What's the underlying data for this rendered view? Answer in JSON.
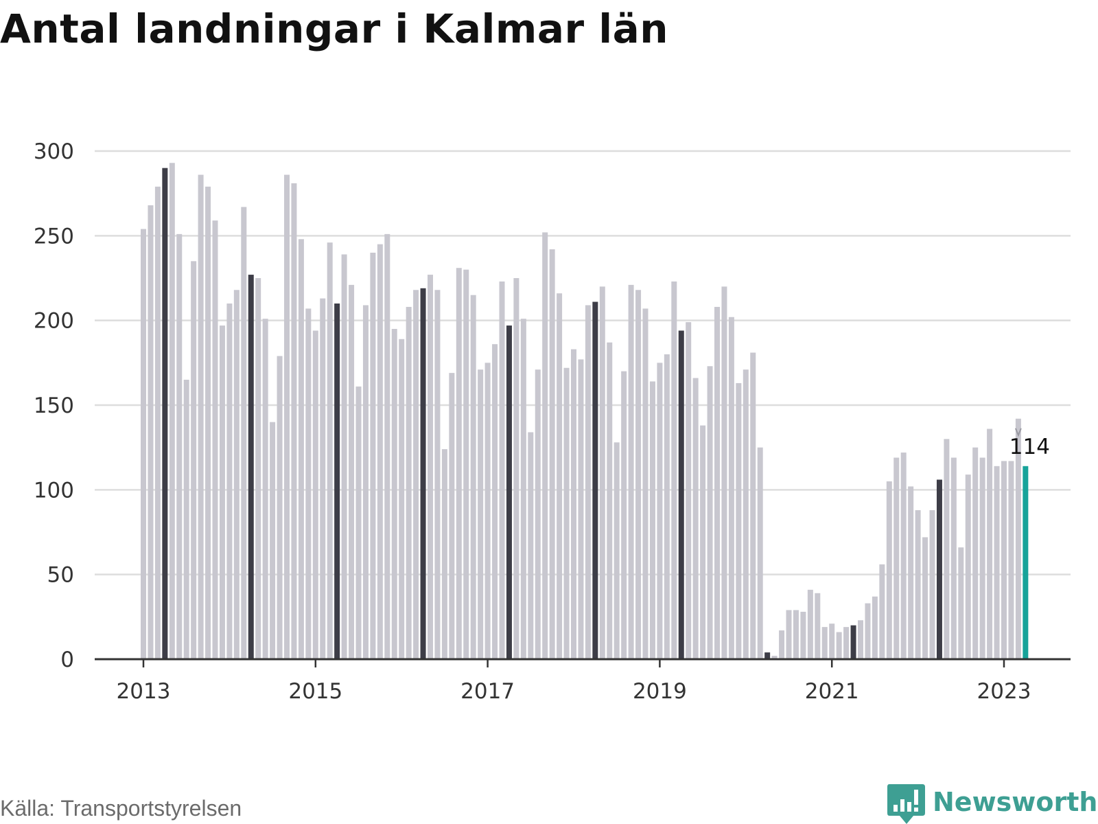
{
  "title": "Antal landningar i Kalmar län",
  "source": "Källa: Transportstyrelsen",
  "brand": {
    "name": "Newsworthy",
    "icon": "newsworthy-logo-icon",
    "color": "#3e9f93"
  },
  "colors": {
    "bar": "#c8c7cf",
    "bar_april": "#3d3d47",
    "bar_latest": "#17a39a",
    "grid": "#dddddd",
    "axis": "#333333"
  },
  "chart_data": {
    "type": "bar",
    "title": "Antal landningar i Kalmar län",
    "xlabel": "",
    "ylabel": "",
    "ylim": [
      0,
      300
    ],
    "yticks": [
      0,
      50,
      100,
      150,
      200,
      250,
      300
    ],
    "xtick_labels": [
      "2013",
      "2015",
      "2017",
      "2019",
      "2021",
      "2023"
    ],
    "grid": true,
    "start": "2013-01",
    "frequency": "monthly",
    "highlight": "April of each year (dark); latest month (teal)",
    "annotation": {
      "label": "114",
      "target": "2023-04"
    },
    "values": [
      254,
      268,
      279,
      290,
      293,
      251,
      165,
      235,
      286,
      279,
      259,
      197,
      210,
      218,
      267,
      227,
      225,
      201,
      140,
      179,
      286,
      281,
      248,
      207,
      194,
      213,
      246,
      210,
      239,
      221,
      161,
      209,
      240,
      245,
      251,
      195,
      189,
      208,
      218,
      219,
      227,
      218,
      124,
      169,
      231,
      230,
      215,
      171,
      175,
      186,
      223,
      197,
      225,
      201,
      134,
      171,
      252,
      242,
      216,
      172,
      183,
      177,
      209,
      211,
      220,
      187,
      128,
      170,
      221,
      218,
      207,
      164,
      175,
      180,
      223,
      194,
      199,
      166,
      138,
      173,
      208,
      220,
      202,
      163,
      171,
      181,
      125,
      4,
      2,
      17,
      29,
      29,
      28,
      41,
      39,
      19,
      21,
      16,
      19,
      20,
      23,
      33,
      37,
      56,
      105,
      119,
      122,
      102,
      88,
      72,
      88,
      106,
      130,
      119,
      66,
      109,
      125,
      119,
      136,
      114,
      117,
      117,
      142,
      114
    ]
  }
}
